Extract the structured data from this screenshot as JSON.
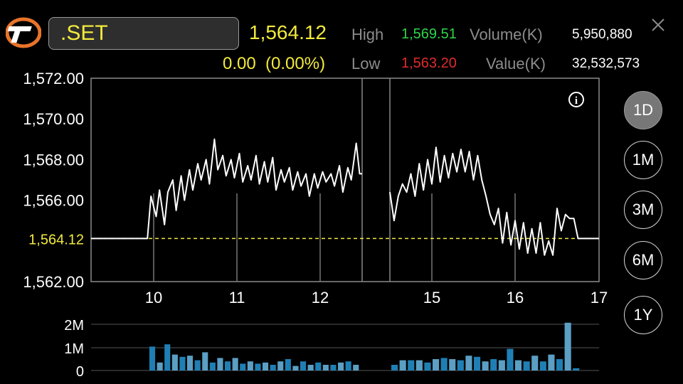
{
  "header": {
    "symbol": ".SET",
    "price": "1,564.12",
    "change": "0.00  (0.00%)",
    "high_label": "High",
    "high_value": "1,569.51",
    "low_label": "Low",
    "low_value": "1,563.20",
    "volume_label": "Volume(K)",
    "volume_value": "5,950,880",
    "value_label": "Value(K)",
    "value_value": "32,532,573"
  },
  "periods": [
    {
      "label": "1D",
      "active": true
    },
    {
      "label": "1M",
      "active": false
    },
    {
      "label": "3M",
      "active": false
    },
    {
      "label": "6M",
      "active": false
    },
    {
      "label": "1Y",
      "active": false
    }
  ],
  "colors": {
    "accent": "#f2ea3c",
    "high": "#2fd44a",
    "low": "#e02b2b",
    "volume_bar": "#1f7fb4",
    "volume_bar_light": "#5b9fc4"
  },
  "icons": {
    "info": "info-icon",
    "close": "close-icon",
    "logo": "brand-logo"
  },
  "chart_data": [
    {
      "type": "line",
      "y_ticks": [
        "1,572.00",
        "1,570.00",
        "1,568.00",
        "1,566.00",
        "1,562.00"
      ],
      "y_tick_values": [
        1572,
        1570,
        1568,
        1566,
        1562
      ],
      "reference_label": "1,564.12",
      "reference_value": 1564.12,
      "ylim": [
        1562,
        1572
      ],
      "x_ticks": [
        "10",
        "11",
        "12",
        "15",
        "16",
        "17"
      ],
      "x_tick_values": [
        10,
        11,
        12,
        15,
        16,
        17
      ],
      "xlim": [
        9.3,
        17
      ],
      "session_break": [
        12.5,
        14.5
      ],
      "series": [
        {
          "x": [
            9.3,
            9.93,
            9.97,
            10.03,
            10.07,
            10.13,
            10.17,
            10.23,
            10.27,
            10.33,
            10.37,
            10.43,
            10.47,
            10.53,
            10.57,
            10.63,
            10.67,
            10.73,
            10.77,
            10.83,
            10.87,
            10.93,
            10.97,
            11.03,
            11.07,
            11.13,
            11.17,
            11.23,
            11.27,
            11.33,
            11.37,
            11.43,
            11.47,
            11.53,
            11.57,
            11.63,
            11.67,
            11.73,
            11.77,
            11.83,
            11.87,
            11.93,
            11.97,
            12.03,
            12.07,
            12.13,
            12.17,
            12.23,
            12.27,
            12.33,
            12.37,
            12.43,
            12.47,
            12.5
          ],
          "y": [
            1564.12,
            1564.12,
            1566.2,
            1565.2,
            1566.5,
            1564.8,
            1566.4,
            1567.0,
            1565.5,
            1567.2,
            1566.0,
            1567.5,
            1566.5,
            1567.8,
            1567.0,
            1568.0,
            1566.8,
            1569.0,
            1567.5,
            1568.2,
            1567.2,
            1568.0,
            1567.1,
            1568.3,
            1566.9,
            1567.7,
            1567.0,
            1568.2,
            1566.8,
            1567.9,
            1566.9,
            1568.1,
            1566.5,
            1567.5,
            1566.9,
            1567.6,
            1566.5,
            1567.4,
            1566.7,
            1567.3,
            1566.2,
            1567.3,
            1566.6,
            1567.4,
            1566.9,
            1567.3,
            1566.7,
            1567.7,
            1566.4,
            1567.6,
            1567.0,
            1568.8,
            1567.3,
            1567.3
          ]
        },
        {
          "x": [
            14.5,
            14.55,
            14.6,
            14.65,
            14.7,
            14.75,
            14.8,
            14.85,
            14.9,
            14.95,
            15.0,
            15.05,
            15.1,
            15.15,
            15.2,
            15.25,
            15.3,
            15.35,
            15.4,
            15.45,
            15.5,
            15.55,
            15.6,
            15.65,
            15.7,
            15.75,
            15.8,
            15.85,
            15.9,
            15.95,
            16.0,
            16.05,
            16.1,
            16.15,
            16.2,
            16.25,
            16.3,
            16.35,
            16.4,
            16.45,
            16.5,
            16.55,
            16.6,
            16.65,
            16.7,
            16.75,
            17.0
          ],
          "y": [
            1566.4,
            1565.0,
            1566.2,
            1566.8,
            1566.4,
            1567.3,
            1566.2,
            1567.8,
            1566.5,
            1568.0,
            1566.8,
            1568.6,
            1566.9,
            1568.2,
            1567.1,
            1568.3,
            1567.4,
            1568.5,
            1567.4,
            1568.4,
            1567.0,
            1568.2,
            1567.0,
            1566.2,
            1565.3,
            1564.8,
            1565.6,
            1563.9,
            1565.4,
            1563.8,
            1565.0,
            1563.6,
            1564.9,
            1563.4,
            1564.6,
            1563.4,
            1564.9,
            1563.3,
            1564.0,
            1563.3,
            1565.6,
            1564.5,
            1565.3,
            1565.1,
            1565.1,
            1564.12,
            1564.12
          ]
        }
      ]
    },
    {
      "type": "bar",
      "y_ticks": [
        "2M",
        "1M",
        "0"
      ],
      "y_tick_values": [
        2000000,
        1000000,
        0
      ],
      "ylim": [
        0,
        2000000
      ],
      "bars_morning": [
        1050000,
        350000,
        1150000,
        700000,
        600000,
        650000,
        450000,
        800000,
        350000,
        550000,
        400000,
        550000,
        300000,
        400000,
        300000,
        350000,
        250000,
        400000,
        500000,
        200000,
        400000,
        250000,
        350000,
        250000,
        250000,
        350000,
        400000,
        250000
      ],
      "bars_afternoon": [
        250000,
        450000,
        450000,
        450000,
        350000,
        500000,
        550000,
        500000,
        450000,
        650000,
        600000,
        400000,
        500000,
        450000,
        950000,
        450000,
        400000,
        650000,
        400000,
        700000,
        500000,
        2100000,
        100000
      ]
    }
  ]
}
